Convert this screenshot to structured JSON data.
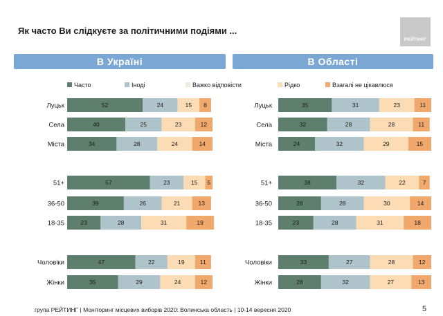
{
  "title": "Як часто Ви слідкуєте за політичними подіями ...",
  "logo_text": "РЕЙТИНГ",
  "footer": "група РЕЙТИНГ | Моніторинг місцевих виборів 2020: Волинська область | 10-14 вересня 2020",
  "page_number": "5",
  "colors": {
    "banner": "#7ba7d4",
    "series": [
      "#5f7f6e",
      "#aec4ca",
      "#ececdd",
      "#fcdcb4",
      "#f0a86c"
    ]
  },
  "chart_data": [
    {
      "type": "bar",
      "orientation": "horizontal",
      "stacked": true,
      "title": "В Україні",
      "categories": [
        "Луцьк",
        "Села",
        "Міста",
        "51+",
        "36-50",
        "18-35",
        "Чоловіки",
        "Жінки"
      ],
      "series": [
        {
          "name": "Часто",
          "values": [
            52,
            40,
            34,
            57,
            39,
            23,
            47,
            35
          ]
        },
        {
          "name": "Іноді",
          "values": [
            24,
            25,
            28,
            23,
            26,
            28,
            22,
            29
          ]
        },
        {
          "name": "Важко відповісти",
          "values": [
            0,
            0,
            0,
            0,
            0,
            0,
            0,
            0
          ]
        },
        {
          "name": "Рідко",
          "values": [
            15,
            23,
            24,
            15,
            21,
            31,
            19,
            24
          ]
        },
        {
          "name": "Взагалі не цікавлюся",
          "values": [
            8,
            12,
            14,
            5,
            13,
            19,
            11,
            12
          ]
        }
      ],
      "xlim": [
        0,
        100
      ]
    },
    {
      "type": "bar",
      "orientation": "horizontal",
      "stacked": true,
      "title": "В Області",
      "categories": [
        "Луцьк",
        "Села",
        "Міста",
        "51+",
        "36-50",
        "18-35",
        "Чоловіки",
        "Жінки"
      ],
      "series": [
        {
          "name": "Часто",
          "values": [
            35,
            32,
            24,
            38,
            28,
            23,
            33,
            28
          ]
        },
        {
          "name": "Іноді",
          "values": [
            31,
            28,
            32,
            32,
            28,
            28,
            27,
            32
          ]
        },
        {
          "name": "Важко відповісти",
          "values": [
            0,
            0,
            0,
            0,
            0,
            0,
            0,
            0
          ]
        },
        {
          "name": "Рідко",
          "values": [
            23,
            28,
            29,
            22,
            30,
            31,
            28,
            27
          ]
        },
        {
          "name": "Взагалі не цікавлюся",
          "values": [
            11,
            11,
            15,
            7,
            14,
            18,
            12,
            13
          ]
        }
      ],
      "xlim": [
        0,
        100
      ]
    }
  ]
}
